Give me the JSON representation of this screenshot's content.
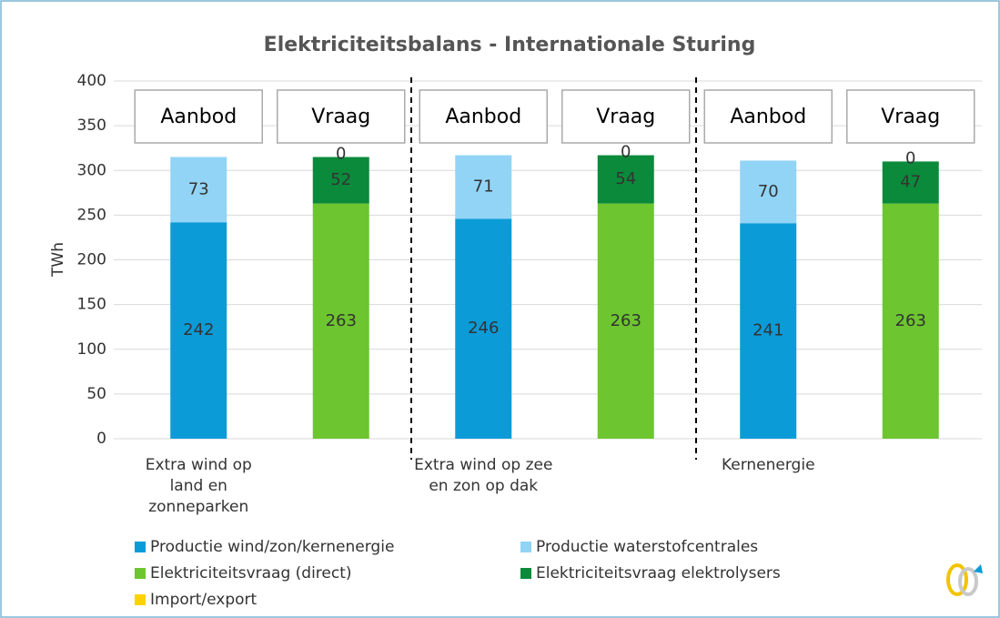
{
  "chart_data": {
    "type": "stacked_bar",
    "title": "Elektriciteitsbalans - Internationale Sturing",
    "y_label": "TWh",
    "categories": [
      "Extra wind op land en zonneparken",
      null,
      "Extra wind op zee en zon op dak",
      null,
      "Kernenergie",
      null
    ],
    "annotations": [
      "Aanbod",
      "Vraag",
      "Aanbod",
      "Vraag",
      "Aanbod",
      "Vraag"
    ],
    "series": [
      {
        "name": "Productie wind/zon/kernenergie",
        "color": "#0b9bd7",
        "values": [
          242,
          null,
          246,
          null,
          241,
          null
        ]
      },
      {
        "name": "Productie waterstofcentrales",
        "color": "#91d4f6",
        "values": [
          73,
          null,
          71,
          null,
          70,
          null
        ]
      },
      {
        "name": "Elektriciteitsvraag (direct)",
        "color": "#6dc52f",
        "values": [
          null,
          263,
          null,
          263,
          null,
          263
        ]
      },
      {
        "name": "Elektriciteitsvraag elektrolysers",
        "color": "#0b8a3b",
        "values": [
          null,
          52,
          null,
          54,
          null,
          47
        ]
      },
      {
        "name": "Import/export",
        "color": "#ffd200",
        "values": [
          null,
          0,
          null,
          0,
          null,
          0
        ]
      }
    ],
    "ylim": [
      0,
      400
    ],
    "yticks": [
      0,
      50,
      100,
      150,
      200,
      250,
      300,
      350,
      400
    ],
    "grid": true
  }
}
